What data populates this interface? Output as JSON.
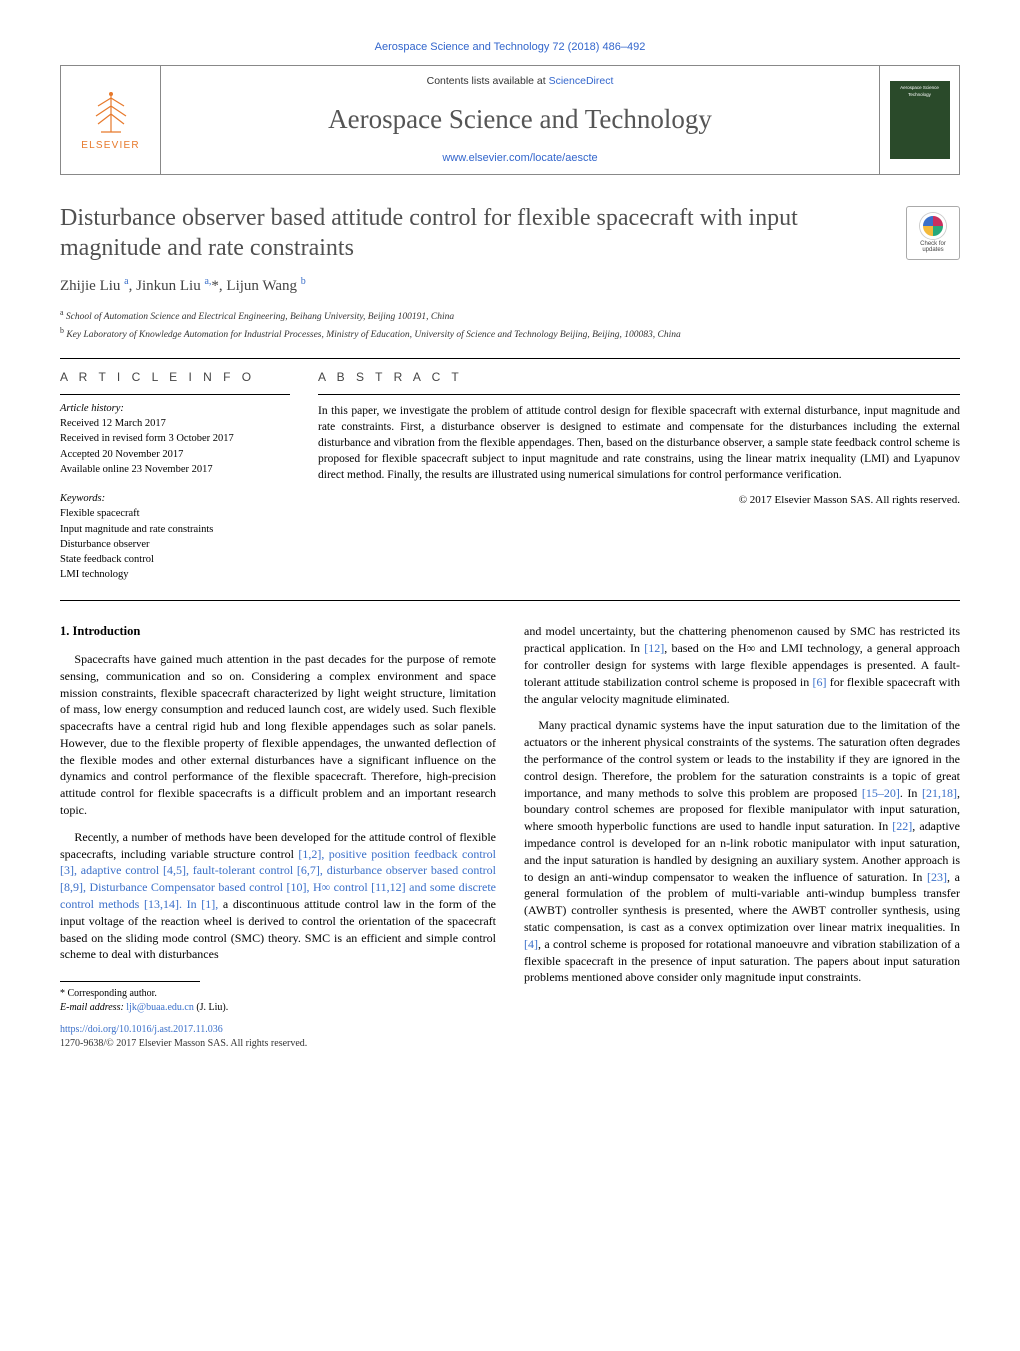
{
  "journal": {
    "header_citation": "Aerospace Science and Technology 72 (2018) 486–492",
    "contents_prefix": "Contents lists available at ",
    "contents_link": "ScienceDirect",
    "name": "Aerospace Science and Technology",
    "homepage": "www.elsevier.com/locate/aescte",
    "publisher": "ELSEVIER",
    "cover_text": "Aerospace Science Technology"
  },
  "crossmark": {
    "line1": "Check for",
    "line2": "updates"
  },
  "article": {
    "title": "Disturbance observer based attitude control for flexible spacecraft with input magnitude and rate constraints",
    "authors_html": "Zhijie Liu <sup>a</sup>, Jinkun Liu <sup>a,</sup>*, Lijun Wang <sup>b</sup>",
    "affiliations": {
      "a": "School of Automation Science and Electrical Engineering, Beihang University, Beijing 100191, China",
      "b": "Key Laboratory of Knowledge Automation for Industrial Processes, Ministry of Education, University of Science and Technology Beijing, Beijing, 100083, China"
    }
  },
  "info": {
    "heading": "A R T I C L E   I N F O",
    "history_label": "Article history:",
    "received": "Received 12 March 2017",
    "revised": "Received in revised form 3 October 2017",
    "accepted": "Accepted 20 November 2017",
    "online": "Available online 23 November 2017",
    "keywords_label": "Keywords:",
    "keywords": [
      "Flexible spacecraft",
      "Input magnitude and rate constraints",
      "Disturbance observer",
      "State feedback control",
      "LMI technology"
    ]
  },
  "abstract": {
    "heading": "A B S T R A C T",
    "text": "In this paper, we investigate the problem of attitude control design for flexible spacecraft with external disturbance, input magnitude and rate constraints. First, a disturbance observer is designed to estimate and compensate for the disturbances including the external disturbance and vibration from the flexible appendages. Then, based on the disturbance observer, a sample state feedback control scheme is proposed for flexible spacecraft subject to input magnitude and rate constrains, using the linear matrix inequality (LMI) and Lyapunov direct method. Finally, the results are illustrated using numerical simulations for control performance verification.",
    "copyright": "© 2017 Elsevier Masson SAS. All rights reserved."
  },
  "body": {
    "section1_heading": "1. Introduction",
    "para1": "Spacecrafts have gained much attention in the past decades for the purpose of remote sensing, communication and so on. Considering a complex environment and space mission constraints, flexible spacecraft characterized by light weight structure, limitation of mass, low energy consumption and reduced launch cost, are widely used. Such flexible spacecrafts have a central rigid hub and long flexible appendages such as solar panels. However, due to the flexible property of flexible appendages, the unwanted deflection of the flexible modes and other external disturbances have a significant influence on the dynamics and control performance of the flexible spacecraft. Therefore, high-precision attitude control for flexible spacecrafts is a difficult problem and an important research topic.",
    "para2_pre": "Recently, a number of methods have been developed for the attitude control of flexible spacecrafts, including variable structure control ",
    "para2_refs": "[1,2], positive position feedback control [3], adaptive control [4,5], fault-tolerant control [6,7], disturbance observer based control [8,9], Disturbance Compensator based control [10], H∞ control [11,12] and some discrete control methods [13,14]. In [1],",
    "para2_post": " a discontinuous attitude control law in the form of the input voltage of the reaction wheel is derived to control the orientation of the spacecraft based on the sliding mode control (SMC) theory. SMC is an efficient and simple control scheme to deal with disturbances",
    "para3_pre": "and model uncertainty, but the chattering phenomenon caused by SMC has restricted its practical application. In ",
    "para3_r12": "[12]",
    "para3_mid1": ", based on the H∞ and LMI technology, a general approach for controller design for systems with large flexible appendages is presented. A fault-tolerant attitude stabilization control scheme is proposed in ",
    "para3_r6": "[6]",
    "para3_post": " for flexible spacecraft with the angular velocity magnitude eliminated.",
    "para4_pre": "Many practical dynamic systems have the input saturation due to the limitation of the actuators or the inherent physical constraints of the systems. The saturation often degrades the performance of the control system or leads to the instability if they are ignored in the control design. Therefore, the problem for the saturation constraints is a topic of great importance, and many methods to solve this problem are proposed ",
    "para4_r1520": "[15–20]",
    "para4_mid1": ". In ",
    "para4_r2118": "[21,18]",
    "para4_mid2": ", boundary control schemes are proposed for flexible manipulator with input saturation, where smooth hyperbolic functions are used to handle input saturation. In ",
    "para4_r22": "[22]",
    "para4_mid3": ", adaptive impedance control is developed for an n-link robotic manipulator with input saturation, and the input saturation is handled by designing an auxiliary system. Another approach is to design an anti-windup compensator to weaken the influence of saturation. In ",
    "para4_r23": "[23]",
    "para4_mid4": ", a general formulation of the problem of multi-variable anti-windup bumpless transfer (AWBT) controller synthesis is presented, where the AWBT controller synthesis, using static compensation, is cast as a convex optimization over linear matrix inequalities. In ",
    "para4_r4": "[4]",
    "para4_post": ", a control scheme is proposed for rotational manoeuvre and vibration stabilization of a flexible spacecraft in the presence of input saturation. The papers about input saturation problems mentioned above consider only magnitude input constraints."
  },
  "footnotes": {
    "corr_label": "* Corresponding author.",
    "email_label": "E-mail address: ",
    "email": "ljk@buaa.edu.cn",
    "email_person": " (J. Liu)."
  },
  "doi": "https://doi.org/10.1016/j.ast.2017.11.036",
  "bottom_copyright": "1270-9638/© 2017 Elsevier Masson SAS. All rights reserved.",
  "colors": {
    "link": "#3a6fc9",
    "elsevier": "#e7792b",
    "heading_gray": "#505050"
  }
}
